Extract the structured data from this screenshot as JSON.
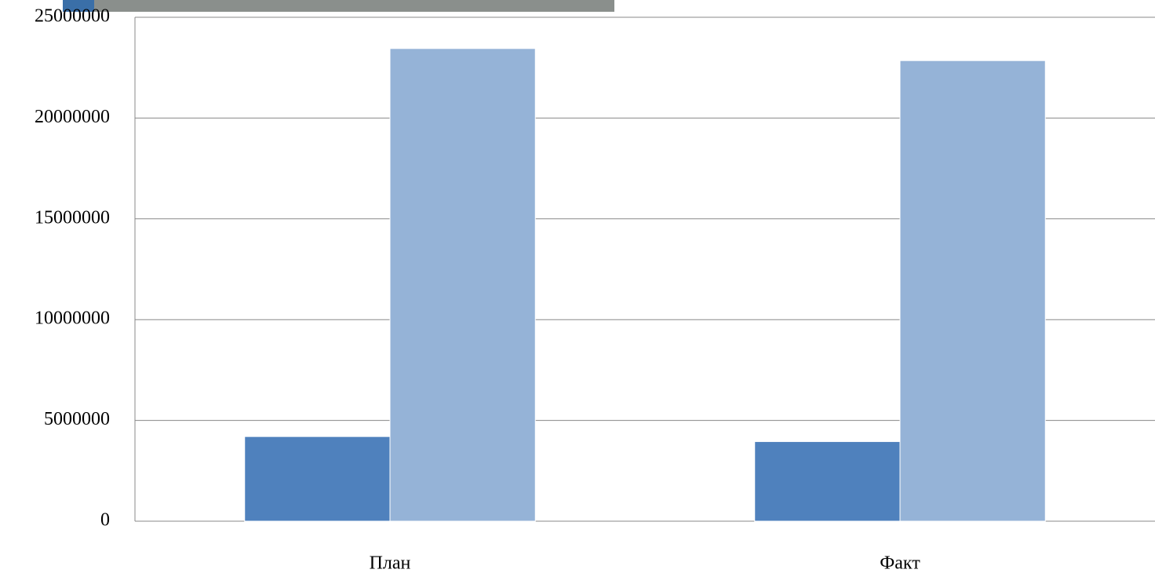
{
  "chart_data": {
    "type": "bar",
    "categories": [
      "План",
      "Факт"
    ],
    "series": [
      {
        "color": "#4f81bd",
        "values": [
          4200000,
          3950000
        ]
      },
      {
        "color": "#95b3d7",
        "values": [
          23450000,
          22850000
        ]
      }
    ],
    "ylim": [
      0,
      25000000
    ],
    "yticks": [
      0,
      5000000,
      10000000,
      15000000,
      20000000,
      25000000
    ],
    "grid": true
  }
}
